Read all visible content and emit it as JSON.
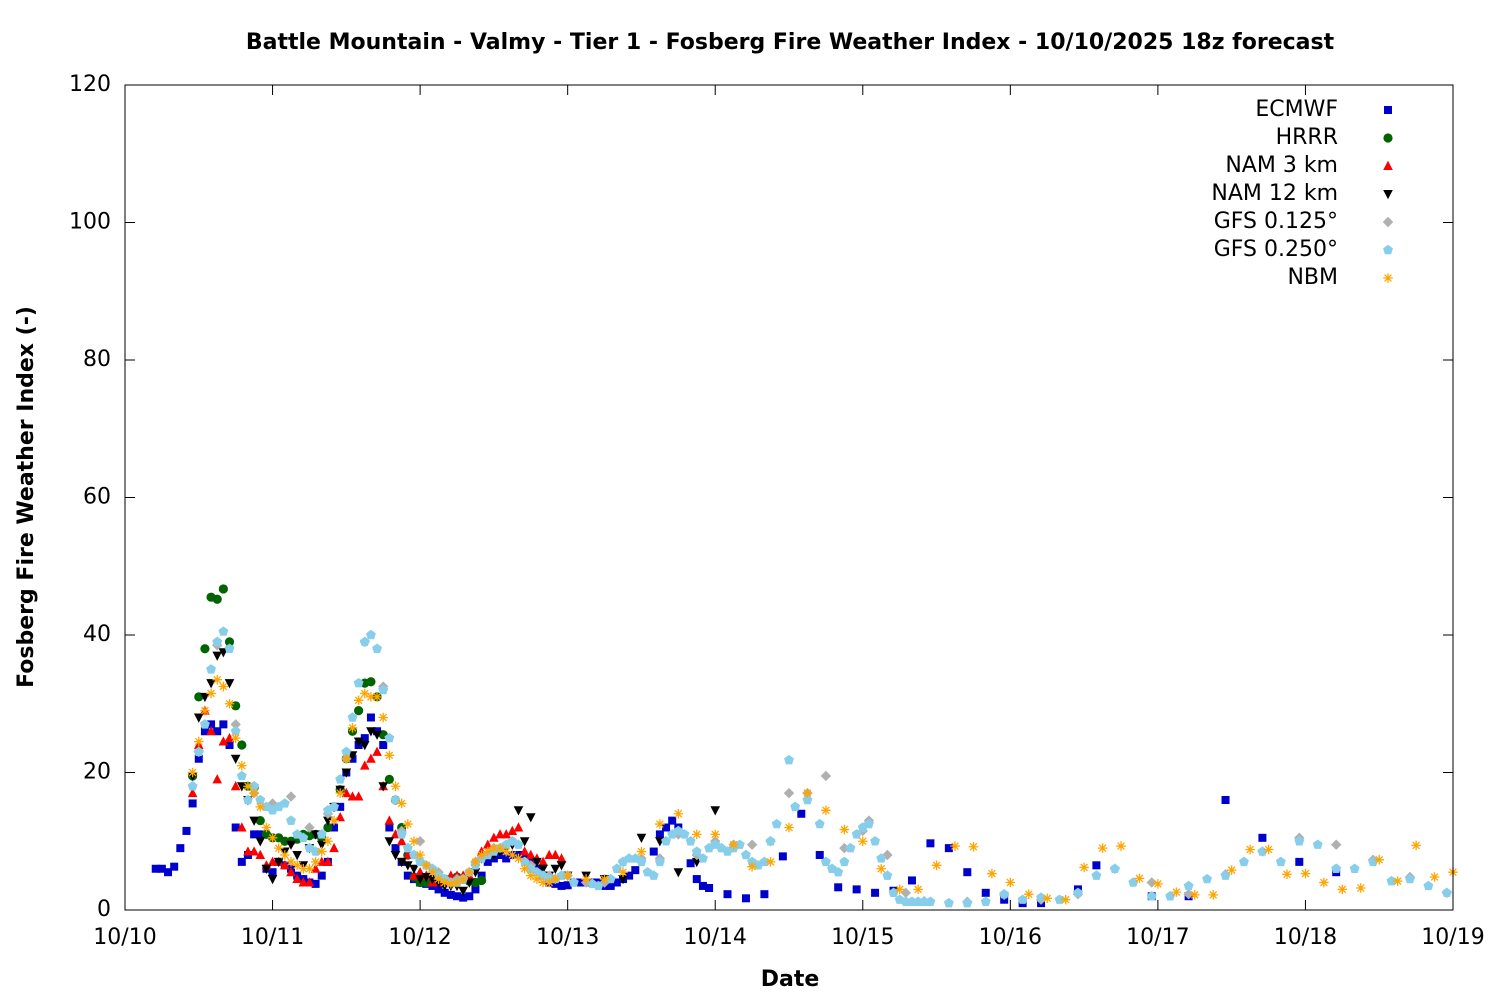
{
  "chart_data": {
    "type": "scatter",
    "title": "Battle Mountain - Valmy - Tier 1 - Fosberg Fire Weather Index - 10/10/2025 18z forecast",
    "x_label": "Date",
    "y_label": "Fosberg Fire Weather Index (-)",
    "xlim": [
      0,
      216
    ],
    "ylim": [
      0,
      120
    ],
    "xticks": [
      {
        "value": 0,
        "label": "10/10"
      },
      {
        "value": 24,
        "label": "10/11"
      },
      {
        "value": 48,
        "label": "10/12"
      },
      {
        "value": 72,
        "label": "10/13"
      },
      {
        "value": 96,
        "label": "10/14"
      },
      {
        "value": 120,
        "label": "10/15"
      },
      {
        "value": 144,
        "label": "10/16"
      },
      {
        "value": 168,
        "label": "10/17"
      },
      {
        "value": 192,
        "label": "10/18"
      },
      {
        "value": 216,
        "label": "10/19"
      }
    ],
    "yticks": [
      0,
      20,
      40,
      60,
      80,
      100,
      120
    ],
    "legend": "top-right",
    "series": [
      {
        "name": "ECMWF",
        "color": "#0000cc",
        "marker": "square",
        "x": [
          5,
          6,
          7,
          8,
          9,
          10,
          11,
          12,
          13,
          14,
          15,
          16,
          17,
          18,
          19,
          20,
          21,
          22,
          23,
          24,
          25,
          26,
          27,
          28,
          29,
          30,
          31,
          32,
          33,
          34,
          35,
          36,
          37,
          38,
          39,
          40,
          41,
          42,
          43,
          44,
          45,
          46,
          47,
          48,
          49,
          50,
          51,
          52,
          53,
          54,
          55,
          56,
          57,
          58,
          59,
          60,
          61,
          62,
          63,
          64,
          65,
          66,
          67,
          68,
          69,
          70,
          71,
          72,
          73,
          74,
          75,
          76,
          77,
          78,
          79,
          80,
          81,
          82,
          83,
          86,
          87,
          88,
          89,
          90,
          92,
          93,
          94,
          95,
          98,
          101,
          104,
          107,
          110,
          113,
          116,
          119,
          122,
          125,
          128,
          131,
          134,
          137,
          140,
          143,
          146,
          149,
          155,
          158,
          167,
          173,
          179,
          185,
          191,
          197
        ],
        "values": [
          6,
          6,
          5.5,
          6.3,
          9,
          11.5,
          15.5,
          22,
          26,
          27,
          26,
          27,
          24,
          12,
          7,
          8,
          11,
          11,
          6,
          5.5,
          7,
          6.5,
          6,
          5,
          4.5,
          4,
          3.8,
          5,
          7,
          12,
          15,
          20,
          22,
          24,
          25,
          28,
          26,
          24,
          12,
          9,
          7,
          5,
          4.5,
          4,
          3.8,
          3.5,
          3,
          2.5,
          2.2,
          2,
          1.8,
          2,
          3,
          5,
          7,
          7.5,
          8,
          7.5,
          8,
          8,
          7.5,
          7,
          6,
          5,
          4,
          3.8,
          3.5,
          3.6,
          4,
          4,
          4,
          4,
          4,
          3.5,
          3.5,
          4,
          4.5,
          5,
          5.8,
          8.5,
          11,
          12,
          13,
          12,
          6.8,
          4.5,
          3.5,
          3.2,
          2.3,
          1.7,
          2.3,
          7.8,
          14,
          8,
          3.3,
          3,
          2.5,
          2.8,
          4.3,
          9.7,
          9,
          5.5,
          2.5,
          1.5,
          1,
          1,
          3,
          6.5,
          2,
          2,
          16,
          10.5,
          7,
          5.5
        ]
      },
      {
        "name": "HRRR",
        "color": "#006400",
        "marker": "circle",
        "x": [
          11,
          12,
          13,
          14,
          15,
          16,
          17,
          18,
          19,
          20,
          21,
          22,
          23,
          24,
          25,
          26,
          27,
          28,
          29,
          30,
          31,
          32,
          33,
          34,
          35,
          36,
          37,
          38,
          39,
          40,
          41,
          42,
          43,
          44,
          45,
          46,
          47,
          48,
          49,
          50,
          51,
          52,
          53,
          54,
          55,
          56,
          57,
          58
        ],
        "values": [
          19.5,
          31,
          38,
          45.5,
          45.2,
          46.7,
          39,
          29.7,
          24,
          18,
          17.8,
          13,
          11,
          10.5,
          10.5,
          10,
          10,
          10.3,
          11,
          10.8,
          11,
          10.5,
          12,
          15,
          17.5,
          22,
          26,
          29,
          33,
          33.2,
          31,
          25.5,
          19,
          16,
          12,
          8,
          4.8,
          4,
          4,
          4.5,
          4.5,
          4.5,
          4.5,
          4.8,
          4.5,
          4.2,
          4,
          4.3
        ]
      },
      {
        "name": "NAM 3 km",
        "color": "#ff0000",
        "marker": "triangle-up",
        "x": [
          11,
          12,
          13,
          14,
          15,
          16,
          17,
          18,
          19,
          20,
          21,
          22,
          23,
          24,
          25,
          26,
          27,
          28,
          29,
          30,
          31,
          32,
          33,
          34,
          35,
          36,
          37,
          38,
          39,
          40,
          41,
          42,
          43,
          44,
          45,
          46,
          47,
          48,
          49,
          50,
          51,
          52,
          53,
          54,
          55,
          56,
          57,
          58,
          59,
          60,
          61,
          62,
          63,
          64,
          65,
          66,
          67,
          68,
          69,
          70,
          71
        ],
        "values": [
          17,
          24,
          29,
          26,
          19,
          24.5,
          25,
          18,
          12,
          8.5,
          8.5,
          8,
          6.5,
          7,
          7,
          6.5,
          5.5,
          4.5,
          4,
          4,
          6,
          7,
          7,
          9,
          13.5,
          17,
          16.5,
          16.5,
          21,
          22,
          23,
          18,
          13,
          11,
          10,
          8,
          5,
          5.5,
          5,
          4,
          4,
          4.5,
          5,
          5,
          5,
          5,
          7,
          8.5,
          9.5,
          10.5,
          11,
          11,
          11.5,
          12,
          8.5,
          8,
          7.5,
          7,
          8,
          8,
          7.5
        ]
      },
      {
        "name": "NAM 12 km",
        "color": "#000000",
        "marker": "triangle-down",
        "x": [
          11,
          12,
          13,
          14,
          15,
          16,
          17,
          18,
          19,
          20,
          21,
          22,
          23,
          24,
          25,
          26,
          27,
          28,
          29,
          30,
          31,
          32,
          33,
          34,
          35,
          36,
          37,
          38,
          39,
          40,
          41,
          42,
          43,
          44,
          45,
          46,
          47,
          48,
          49,
          50,
          51,
          52,
          53,
          54,
          55,
          56,
          57,
          58,
          59,
          60,
          61,
          62,
          63,
          64,
          65,
          66,
          67,
          68,
          69,
          70,
          71,
          72,
          75,
          78,
          81,
          84,
          87,
          90,
          93,
          96
        ],
        "values": [
          19.5,
          28,
          31,
          33,
          37,
          37.5,
          33,
          22,
          18,
          16,
          13,
          10,
          6,
          4.5,
          7,
          8.5,
          9.5,
          8,
          6.5,
          9,
          11,
          9.5,
          13,
          15,
          17.5,
          20,
          22.5,
          24.5,
          24,
          26,
          25.5,
          18,
          10,
          8,
          7,
          6.5,
          6,
          4.5,
          4.8,
          4.5,
          4,
          3.5,
          3.5,
          3.5,
          2.8,
          4,
          5.5,
          7.5,
          8,
          8,
          8.5,
          9,
          9.5,
          14.5,
          10,
          13.5,
          7,
          6,
          5,
          6,
          6.5,
          5,
          5,
          4.5,
          4.5,
          10.5,
          10,
          5.5,
          7,
          14.5
        ]
      },
      {
        "name": "GFS 0.125°",
        "color": "#b0b0b0",
        "marker": "diamond",
        "x": [
          12,
          15,
          18,
          21,
          24,
          27,
          30,
          33,
          36,
          39,
          42,
          45,
          48,
          51,
          54,
          57,
          60,
          63,
          66,
          69,
          72,
          75,
          78,
          81,
          84,
          87,
          90,
          93,
          96,
          99,
          102,
          105,
          108,
          111,
          114,
          117,
          120,
          121,
          124,
          127,
          130,
          137,
          143,
          149,
          155,
          161,
          167,
          173,
          179,
          185,
          191,
          197,
          203,
          209,
          215
        ],
        "values": [
          23,
          38.5,
          27,
          17,
          15.5,
          16.5,
          12,
          14,
          22,
          39,
          32.5,
          11.5,
          10,
          5.5,
          4.5,
          7,
          9,
          10,
          6.5,
          5,
          5,
          4,
          4,
          7,
          7.5,
          7.5,
          11,
          8,
          10,
          9.5,
          9.5,
          10,
          17,
          17,
          19.5,
          9,
          11.5,
          13,
          8,
          2.5,
          1.3,
          1.2,
          2.2,
          1.5,
          2.3,
          6,
          4,
          2.3,
          5.2,
          8.5,
          10.5,
          9.5,
          7.3,
          4.8,
          2.5
        ]
      },
      {
        "name": "GFS 0.250°",
        "color": "#87ceeb",
        "marker": "pentagon",
        "x": [
          11,
          12,
          13,
          14,
          15,
          16,
          17,
          18,
          19,
          20,
          21,
          22,
          23,
          24,
          25,
          26,
          27,
          28,
          29,
          30,
          31,
          32,
          33,
          34,
          35,
          36,
          37,
          38,
          39,
          40,
          41,
          42,
          43,
          44,
          45,
          46,
          47,
          48,
          49,
          50,
          51,
          52,
          53,
          54,
          55,
          56,
          57,
          58,
          59,
          60,
          61,
          62,
          63,
          64,
          65,
          66,
          67,
          68,
          69,
          70,
          71,
          73,
          76,
          77,
          79,
          80,
          81,
          82,
          83,
          84,
          85,
          86,
          87,
          88,
          89,
          90,
          91,
          92,
          93,
          94,
          95,
          96,
          97,
          98,
          99,
          100,
          101,
          102,
          103,
          104,
          105,
          106,
          108,
          109,
          111,
          113,
          114,
          115,
          116,
          117,
          118,
          119,
          120,
          121,
          122,
          123,
          124,
          125,
          126,
          127,
          128,
          129,
          130,
          131,
          134,
          137,
          140,
          143,
          146,
          149,
          152,
          155,
          158,
          161,
          164,
          167,
          170,
          173,
          176,
          179,
          182,
          185,
          188,
          191,
          194,
          197,
          200,
          203,
          206,
          209,
          212,
          215
        ],
        "values": [
          18,
          23,
          27,
          35,
          39,
          40.5,
          38,
          26,
          19.5,
          16,
          18,
          16,
          15,
          14.5,
          15,
          15.5,
          13,
          11,
          10.5,
          9,
          8.5,
          11,
          14.5,
          15,
          19,
          23,
          28,
          33,
          39,
          40,
          38,
          32,
          25,
          16,
          11,
          9,
          8,
          7,
          6.5,
          6,
          5,
          4.5,
          4,
          4,
          4.5,
          5.5,
          6.5,
          7.5,
          8,
          8.5,
          9,
          9.5,
          10,
          9.5,
          7,
          6,
          5.5,
          5,
          4.5,
          4.5,
          5,
          4,
          3.8,
          3.5,
          4.5,
          6,
          7,
          7.5,
          7.5,
          7,
          5.5,
          5,
          7,
          10,
          11,
          11.5,
          11,
          10,
          8.5,
          7.5,
          9,
          9.5,
          9,
          8.5,
          9,
          9.5,
          8,
          7,
          6.5,
          7,
          10,
          12.5,
          21.8,
          15,
          16,
          12.5,
          7,
          6,
          5.5,
          7,
          9,
          11,
          12,
          12.5,
          10,
          7.5,
          5,
          2.5,
          1.5,
          1.2,
          1.2,
          1.2,
          1.2,
          1.2,
          1,
          1,
          1.2,
          2.3,
          1.5,
          1.8,
          1.5,
          2.5,
          5,
          6,
          4,
          2,
          2,
          3.5,
          4.5,
          5,
          7,
          8.5,
          7,
          10,
          9.5,
          6,
          6,
          7,
          4.2,
          4.5,
          3.5,
          2.5
        ]
      },
      {
        "name": "NBM",
        "color": "#ffa500",
        "marker": "asterisk",
        "x": [
          11,
          12,
          13,
          14,
          15,
          16,
          17,
          18,
          19,
          20,
          21,
          22,
          23,
          24,
          25,
          26,
          27,
          28,
          29,
          30,
          31,
          32,
          33,
          34,
          35,
          36,
          37,
          38,
          39,
          40,
          41,
          42,
          43,
          44,
          45,
          46,
          47,
          48,
          49,
          50,
          51,
          52,
          53,
          54,
          55,
          56,
          57,
          58,
          59,
          60,
          61,
          62,
          63,
          64,
          65,
          66,
          67,
          68,
          69,
          70,
          72,
          75,
          78,
          81,
          84,
          87,
          90,
          93,
          96,
          99,
          102,
          105,
          108,
          111,
          114,
          117,
          120,
          123,
          126,
          129,
          132,
          135,
          138,
          141,
          144,
          147,
          150,
          153,
          156,
          159,
          162,
          165,
          168,
          171,
          174,
          177,
          180,
          183,
          186,
          189,
          192,
          195,
          198,
          201,
          204,
          207,
          210,
          213,
          216
        ],
        "values": [
          20,
          24.5,
          29,
          31.5,
          33.5,
          32.5,
          30,
          25,
          21,
          18,
          17,
          15,
          12,
          10.5,
          9,
          8,
          7,
          6.5,
          6,
          6,
          7,
          8.5,
          10,
          13,
          17,
          22,
          26.5,
          30.5,
          31.5,
          31,
          31,
          28,
          22.5,
          18,
          15.5,
          12.5,
          10,
          8,
          6.5,
          5.5,
          4.5,
          4,
          3.8,
          4,
          4.5,
          5.5,
          7,
          8,
          8.5,
          9,
          9,
          8.5,
          8,
          7.5,
          6,
          5,
          4.5,
          4,
          4,
          4.5,
          5,
          4.5,
          4.5,
          5.5,
          8.5,
          12.5,
          14,
          11,
          11,
          9.5,
          6.3,
          7,
          12,
          17,
          14.5,
          11.7,
          10,
          6,
          3,
          3,
          6.5,
          9.3,
          9.2,
          5.3,
          4,
          2.3,
          1.7,
          1.5,
          6.2,
          9,
          9.3,
          4.6,
          3.8,
          2.6,
          2.2,
          2.2,
          5.8,
          8.8,
          8.8,
          5.2,
          5.3,
          4,
          3,
          3.2,
          7.3,
          4.2,
          9.4,
          4.8,
          5.5
        ]
      }
    ]
  }
}
